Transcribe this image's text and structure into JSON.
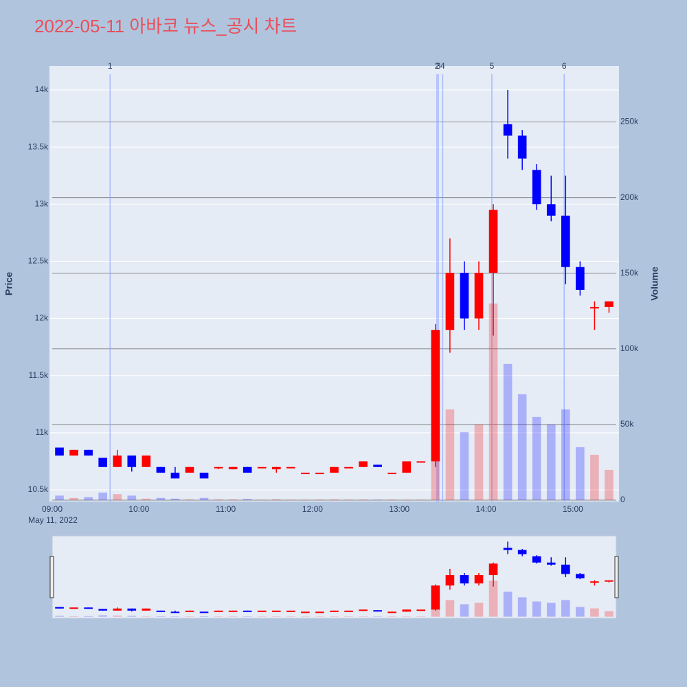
{
  "chart_data": {
    "type": "candlestick",
    "title": "2022-05-11 아바코 뉴스_공시 차트",
    "y_label": "Price",
    "y2_label": "Volume",
    "x_date_label": "May 11, 2022",
    "increasing_color": "#ff0000",
    "decreasing_color": "#0000ff",
    "grid": true,
    "x": [
      "2022-05-11 09:00",
      "2022-05-11 09:10",
      "2022-05-11 09:20",
      "2022-05-11 09:30",
      "2022-05-11 09:40",
      "2022-05-11 09:50",
      "2022-05-11 10:00",
      "2022-05-11 10:10",
      "2022-05-11 10:20",
      "2022-05-11 10:30",
      "2022-05-11 10:40",
      "2022-05-11 10:50",
      "2022-05-11 11:00",
      "2022-05-11 11:10",
      "2022-05-11 11:20",
      "2022-05-11 11:30",
      "2022-05-11 11:40",
      "2022-05-11 11:50",
      "2022-05-11 12:00",
      "2022-05-11 12:10",
      "2022-05-11 12:20",
      "2022-05-11 12:30",
      "2022-05-11 12:40",
      "2022-05-11 12:50",
      "2022-05-11 13:00",
      "2022-05-11 13:10",
      "2022-05-11 13:20",
      "2022-05-11 13:30",
      "2022-05-11 13:40",
      "2022-05-11 13:50",
      "2022-05-11 14:00",
      "2022-05-11 14:10",
      "2022-05-11 14:20",
      "2022-05-11 14:30",
      "2022-05-11 14:40",
      "2022-05-11 14:50",
      "2022-05-11 15:00",
      "2022-05-11 15:10",
      "2022-05-11 15:20"
    ],
    "open": [
      10870,
      10800,
      10850,
      10780,
      10700,
      10800,
      10700,
      10700,
      10650,
      10650,
      10650,
      10700,
      10680,
      10700,
      10700,
      10680,
      10700,
      10650,
      10650,
      10650,
      10700,
      10700,
      10720,
      10650,
      10650,
      10750,
      10750,
      11900,
      12400,
      12000,
      12400,
      13700,
      13600,
      13300,
      13000,
      12900,
      12450,
      12100,
      12100
    ],
    "high": [
      10870,
      10850,
      10850,
      10780,
      10850,
      10800,
      10800,
      10700,
      10700,
      10700,
      10650,
      10700,
      10700,
      10700,
      10700,
      10700,
      10700,
      10650,
      10650,
      10700,
      10700,
      10750,
      10720,
      10650,
      10750,
      10750,
      11950,
      12700,
      12500,
      12500,
      13000,
      14000,
      13650,
      13350,
      13250,
      13250,
      12500,
      12150,
      12150
    ],
    "low": [
      10800,
      10800,
      10800,
      10700,
      10700,
      10660,
      10700,
      10650,
      10600,
      10650,
      10600,
      10680,
      10680,
      10650,
      10700,
      10650,
      10700,
      10650,
      10650,
      10650,
      10700,
      10700,
      10700,
      10650,
      10650,
      10750,
      10700,
      11700,
      11900,
      11900,
      11850,
      13400,
      13300,
      12950,
      12850,
      12300,
      12200,
      11900,
      12050
    ],
    "close": [
      10800,
      10850,
      10800,
      10700,
      10800,
      10700,
      10800,
      10650,
      10600,
      10700,
      10600,
      10700,
      10700,
      10650,
      10700,
      10700,
      10700,
      10650,
      10650,
      10700,
      10700,
      10750,
      10700,
      10650,
      10750,
      10750,
      11900,
      12400,
      12000,
      12400,
      12950,
      13600,
      13400,
      13000,
      12900,
      12450,
      12250,
      12100,
      12150
    ],
    "volume": [
      3000,
      1500,
      2000,
      5000,
      4000,
      3000,
      1000,
      1500,
      1000,
      500,
      1500,
      500,
      500,
      800,
      300,
      600,
      300,
      300,
      400,
      500,
      300,
      400,
      300,
      400,
      300,
      300,
      40000,
      60000,
      45000,
      50000,
      130000,
      90000,
      70000,
      55000,
      50000,
      60000,
      35000,
      30000,
      20000
    ],
    "xlim": [
      "2022-05-11 09:00",
      "2022-05-11 15:30"
    ],
    "xticks": [
      {
        "value": "2022-05-11 09:00",
        "label": "09:00"
      },
      {
        "value": "2022-05-11 10:00",
        "label": "10:00"
      },
      {
        "value": "2022-05-11 11:00",
        "label": "11:00"
      },
      {
        "value": "2022-05-11 12:00",
        "label": "12:00"
      },
      {
        "value": "2022-05-11 13:00",
        "label": "13:00"
      },
      {
        "value": "2022-05-11 14:00",
        "label": "14:00"
      },
      {
        "value": "2022-05-11 15:00",
        "label": "15:00"
      }
    ],
    "ylim": [
      10398,
      14210
    ],
    "yticks": [
      {
        "value": 10500,
        "label": "10.5k"
      },
      {
        "value": 11000,
        "label": "11k"
      },
      {
        "value": 11500,
        "label": "11.5k"
      },
      {
        "value": 12000,
        "label": "12k"
      },
      {
        "value": 12500,
        "label": "12.5k"
      },
      {
        "value": 13000,
        "label": "13k"
      },
      {
        "value": 13500,
        "label": "13.5k"
      },
      {
        "value": 14000,
        "label": "14k"
      }
    ],
    "y2lim": [
      -900,
      287000
    ],
    "y2ticks": [
      0,
      {
        "value": 50000,
        "label": "50k"
      },
      {
        "value": 100000,
        "label": "100k"
      },
      {
        "value": 150000,
        "label": "150k"
      },
      {
        "value": 200000,
        "label": "200k"
      },
      {
        "value": 250000,
        "label": "250k"
      }
    ],
    "events": [
      {
        "x": "2022-05-11 09:40",
        "label": "1"
      },
      {
        "x": "2022-05-11 13:26",
        "label": "2"
      },
      {
        "x": "2022-05-11 13:27",
        "label": "3"
      },
      {
        "x": "2022-05-11 13:30",
        "label": "4"
      },
      {
        "x": "2022-05-11 14:04",
        "label": "5"
      },
      {
        "x": "2022-05-11 14:54",
        "label": "6"
      }
    ]
  }
}
